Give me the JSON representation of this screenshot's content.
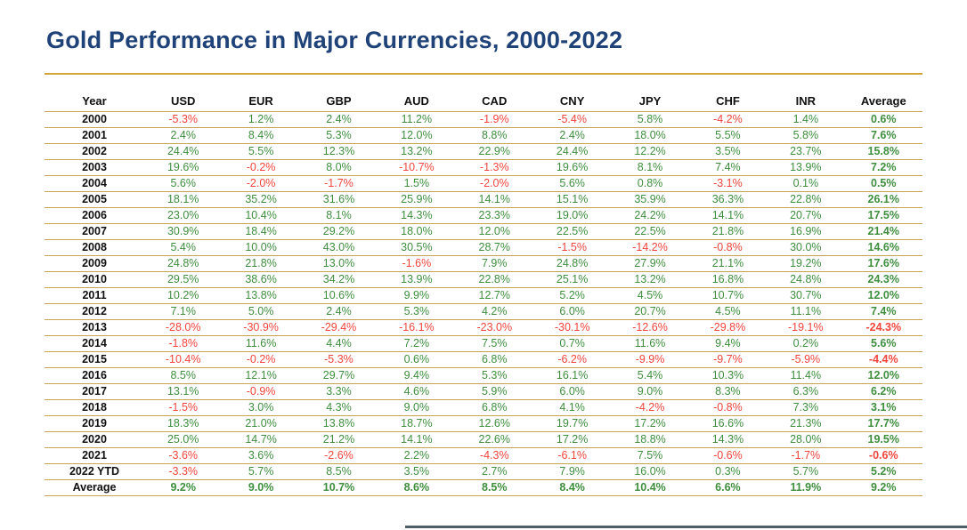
{
  "colors": {
    "blue": "#1f4278",
    "gold": "#d4a43c",
    "goldrow": "#c8a452",
    "green": "#3e8e3e",
    "red": "#f0453c",
    "slate": "#4d6068"
  },
  "chart_data": {
    "type": "table",
    "title": "Gold Performance in Major Currencies, 2000-2022",
    "columns": [
      "Year",
      "USD",
      "EUR",
      "GBP",
      "AUD",
      "CAD",
      "CNY",
      "JPY",
      "CHF",
      "INR",
      "Average"
    ],
    "rows": [
      {
        "label": "2000",
        "values": [
          "-5.3%",
          "1.2%",
          "2.4%",
          "11.2%",
          "-1.9%",
          "-5.4%",
          "5.8%",
          "-4.2%",
          "1.4%",
          "0.6%"
        ]
      },
      {
        "label": "2001",
        "values": [
          "2.4%",
          "8.4%",
          "5.3%",
          "12.0%",
          "8.8%",
          "2.4%",
          "18.0%",
          "5.5%",
          "5.8%",
          "7.6%"
        ]
      },
      {
        "label": "2002",
        "values": [
          "24.4%",
          "5.5%",
          "12.3%",
          "13.2%",
          "22.9%",
          "24.4%",
          "12.2%",
          "3.5%",
          "23.7%",
          "15.8%"
        ]
      },
      {
        "label": "2003",
        "values": [
          "19.6%",
          "-0.2%",
          "8.0%",
          "-10.7%",
          "-1.3%",
          "19.6%",
          "8.1%",
          "7.4%",
          "13.9%",
          "7.2%"
        ]
      },
      {
        "label": "2004",
        "values": [
          "5.6%",
          "-2.0%",
          "-1.7%",
          "1.5%",
          "-2.0%",
          "5.6%",
          "0.8%",
          "-3.1%",
          "0.1%",
          "0.5%"
        ]
      },
      {
        "label": "2005",
        "values": [
          "18.1%",
          "35.2%",
          "31.6%",
          "25.9%",
          "14.1%",
          "15.1%",
          "35.9%",
          "36.3%",
          "22.8%",
          "26.1%"
        ]
      },
      {
        "label": "2006",
        "values": [
          "23.0%",
          "10.4%",
          "8.1%",
          "14.3%",
          "23.3%",
          "19.0%",
          "24.2%",
          "14.1%",
          "20.7%",
          "17.5%"
        ]
      },
      {
        "label": "2007",
        "values": [
          "30.9%",
          "18.4%",
          "29.2%",
          "18.0%",
          "12.0%",
          "22.5%",
          "22.5%",
          "21.8%",
          "16.9%",
          "21.4%"
        ]
      },
      {
        "label": "2008",
        "values": [
          "5.4%",
          "10.0%",
          "43.0%",
          "30.5%",
          "28.7%",
          "-1.5%",
          "-14.2%",
          "-0.8%",
          "30.0%",
          "14.6%"
        ]
      },
      {
        "label": "2009",
        "values": [
          "24.8%",
          "21.8%",
          "13.0%",
          "-1.6%",
          "7.9%",
          "24.8%",
          "27.9%",
          "21.1%",
          "19.2%",
          "17.6%"
        ]
      },
      {
        "label": "2010",
        "values": [
          "29.5%",
          "38.6%",
          "34.2%",
          "13.9%",
          "22.8%",
          "25.1%",
          "13.2%",
          "16.8%",
          "24.8%",
          "24.3%"
        ]
      },
      {
        "label": "2011",
        "values": [
          "10.2%",
          "13.8%",
          "10.6%",
          "9.9%",
          "12.7%",
          "5.2%",
          "4.5%",
          "10.7%",
          "30.7%",
          "12.0%"
        ]
      },
      {
        "label": "2012",
        "values": [
          "7.1%",
          "5.0%",
          "2.4%",
          "5.3%",
          "4.2%",
          "6.0%",
          "20.7%",
          "4.5%",
          "11.1%",
          "7.4%"
        ]
      },
      {
        "label": "2013",
        "values": [
          "-28.0%",
          "-30.9%",
          "-29.4%",
          "-16.1%",
          "-23.0%",
          "-30.1%",
          "-12.6%",
          "-29.8%",
          "-19.1%",
          "-24.3%"
        ]
      },
      {
        "label": "2014",
        "values": [
          "-1.8%",
          "11.6%",
          "4.4%",
          "7.2%",
          "7.5%",
          "0.7%",
          "11.6%",
          "9.4%",
          "0.2%",
          "5.6%"
        ]
      },
      {
        "label": "2015",
        "values": [
          "-10.4%",
          "-0.2%",
          "-5.3%",
          "0.6%",
          "6.8%",
          "-6.2%",
          "-9.9%",
          "-9.7%",
          "-5.9%",
          "-4.4%"
        ]
      },
      {
        "label": "2016",
        "values": [
          "8.5%",
          "12.1%",
          "29.7%",
          "9.4%",
          "5.3%",
          "16.1%",
          "5.4%",
          "10.3%",
          "11.4%",
          "12.0%"
        ]
      },
      {
        "label": "2017",
        "values": [
          "13.1%",
          "-0.9%",
          "3.3%",
          "4.6%",
          "5.9%",
          "6.0%",
          "9.0%",
          "8.3%",
          "6.3%",
          "6.2%"
        ]
      },
      {
        "label": "2018",
        "values": [
          "-1.5%",
          "3.0%",
          "4.3%",
          "9.0%",
          "6.8%",
          "4.1%",
          "-4.2%",
          "-0.8%",
          "7.3%",
          "3.1%"
        ]
      },
      {
        "label": "2019",
        "values": [
          "18.3%",
          "21.0%",
          "13.8%",
          "18.7%",
          "12.6%",
          "19.7%",
          "17.2%",
          "16.6%",
          "21.3%",
          "17.7%"
        ]
      },
      {
        "label": "2020",
        "values": [
          "25.0%",
          "14.7%",
          "21.2%",
          "14.1%",
          "22.6%",
          "17.2%",
          "18.8%",
          "14.3%",
          "28.0%",
          "19.5%"
        ]
      },
      {
        "label": "2021",
        "values": [
          "-3.6%",
          "3.6%",
          "-2.6%",
          "2.2%",
          "-4.3%",
          "-6.1%",
          "7.5%",
          "-0.6%",
          "-1.7%",
          "-0.6%"
        ]
      },
      {
        "label": "2022 YTD",
        "values": [
          "-3.3%",
          "5.7%",
          "8.5%",
          "3.5%",
          "2.7%",
          "7.9%",
          "16.0%",
          "0.3%",
          "5.7%",
          "5.2%"
        ]
      },
      {
        "label": "Average",
        "values": [
          "9.2%",
          "9.0%",
          "10.7%",
          "8.6%",
          "8.5%",
          "8.4%",
          "10.4%",
          "6.6%",
          "11.9%",
          "9.2%"
        ],
        "bold": true
      }
    ]
  }
}
